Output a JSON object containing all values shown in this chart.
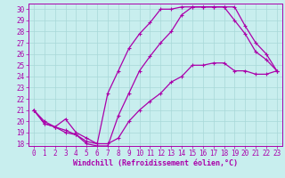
{
  "title": "",
  "xlabel": "Windchill (Refroidissement éolien,°C)",
  "background_color": "#c8eeee",
  "grid_color": "#a8d8d8",
  "line_color": "#aa00aa",
  "spine_color": "#aa00aa",
  "xlim": [
    -0.5,
    23.5
  ],
  "ylim": [
    17.8,
    30.5
  ],
  "yticks": [
    18,
    19,
    20,
    21,
    22,
    23,
    24,
    25,
    26,
    27,
    28,
    29,
    30
  ],
  "xticks": [
    0,
    1,
    2,
    3,
    4,
    5,
    6,
    7,
    8,
    9,
    10,
    11,
    12,
    13,
    14,
    15,
    16,
    17,
    18,
    19,
    20,
    21,
    22,
    23
  ],
  "line1_x": [
    0,
    1,
    2,
    3,
    4,
    5,
    6,
    7,
    8,
    9,
    10,
    11,
    12,
    13,
    14,
    15,
    16,
    17,
    18,
    19,
    20,
    21,
    22,
    23
  ],
  "line1_y": [
    21.0,
    20.0,
    19.5,
    20.2,
    19.0,
    18.5,
    18.0,
    18.0,
    18.5,
    20.0,
    21.0,
    21.8,
    22.5,
    23.5,
    24.0,
    25.0,
    25.0,
    25.2,
    25.2,
    24.5,
    24.5,
    24.2,
    24.2,
    24.5
  ],
  "line2_x": [
    0,
    1,
    2,
    3,
    4,
    5,
    6,
    7,
    8,
    9,
    10,
    11,
    12,
    13,
    14,
    15,
    16,
    17,
    18,
    19,
    20,
    21,
    22,
    23
  ],
  "line2_y": [
    21.0,
    19.8,
    19.5,
    19.0,
    18.8,
    18.2,
    18.0,
    22.5,
    24.5,
    26.5,
    27.8,
    28.8,
    30.0,
    30.0,
    30.2,
    30.2,
    30.2,
    30.2,
    30.2,
    29.0,
    27.8,
    26.2,
    25.5,
    24.5
  ],
  "line3_x": [
    0,
    1,
    2,
    3,
    4,
    5,
    6,
    7,
    8,
    9,
    10,
    11,
    12,
    13,
    14,
    15,
    16,
    17,
    18,
    19,
    20,
    21,
    22,
    23
  ],
  "line3_y": [
    21.0,
    19.8,
    19.5,
    19.2,
    18.8,
    18.0,
    17.8,
    17.8,
    20.5,
    22.5,
    24.5,
    25.8,
    27.0,
    28.0,
    29.5,
    30.2,
    30.2,
    30.2,
    30.2,
    30.2,
    28.5,
    27.0,
    26.0,
    24.5
  ],
  "tick_fontsize": 5.5,
  "xlabel_fontsize": 6.0,
  "marker_size": 3,
  "linewidth": 0.9
}
